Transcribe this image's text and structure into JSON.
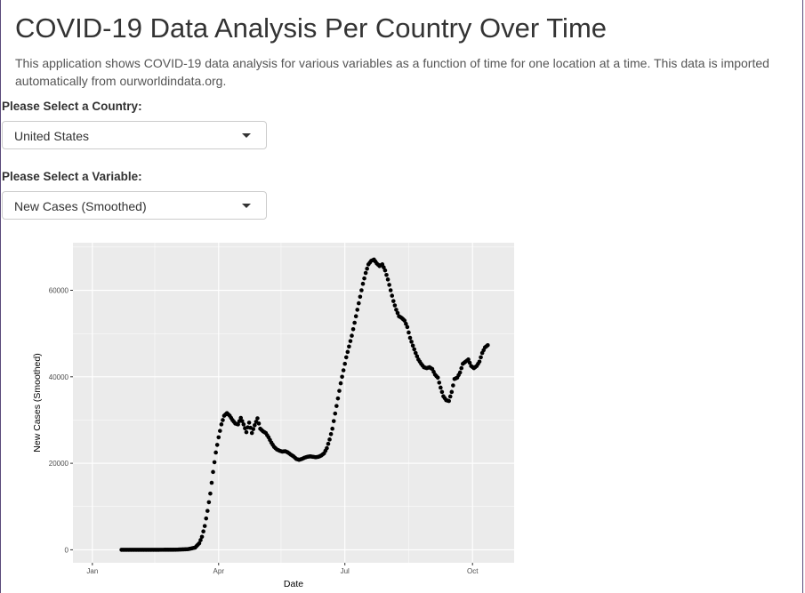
{
  "header": {
    "title": "COVID-19 Data Analysis Per Country Over Time",
    "description": "This application shows COVID-19 data analysis for various variables as a function of time for one location at a time. This data is imported automatically from ourworldindata.org."
  },
  "controls": {
    "country_label": "Please Select a Country:",
    "country_value": "United States",
    "variable_label": "Please Select a Variable:",
    "variable_value": "New Cases (Smoothed)"
  },
  "colors": {
    "panel_background": "#ebebeb",
    "grid": "#ffffff",
    "points": "#000000"
  },
  "chart_data": {
    "type": "scatter",
    "title": "",
    "xlabel": "Date",
    "ylabel": "New Cases (Smoothed)",
    "x_ticks": [
      "Jan",
      "Apr",
      "Jul",
      "Oct"
    ],
    "x_tick_dates": [
      "2020-01-01",
      "2020-04-01",
      "2020-07-01",
      "2020-10-01"
    ],
    "y_ticks": [
      0,
      20000,
      40000,
      60000
    ],
    "y_tick_labels": [
      "0",
      "20000",
      "40000",
      "60000"
    ],
    "xlim": [
      "2019-12-18",
      "2020-10-31"
    ],
    "ylim": [
      -3000,
      71000
    ],
    "grid": true,
    "legend": "none",
    "series": [
      {
        "points": [
          [
            "2020-01-22",
            0
          ],
          [
            "2020-02-15",
            0
          ],
          [
            "2020-03-01",
            20
          ],
          [
            "2020-03-10",
            150
          ],
          [
            "2020-03-15",
            500
          ],
          [
            "2020-03-18",
            1500
          ],
          [
            "2020-03-20",
            3000
          ],
          [
            "2020-03-22",
            5500
          ],
          [
            "2020-03-24",
            9000
          ],
          [
            "2020-03-26",
            13000
          ],
          [
            "2020-03-28",
            18000
          ],
          [
            "2020-03-30",
            22500
          ],
          [
            "2020-04-01",
            26000
          ],
          [
            "2020-04-03",
            29000
          ],
          [
            "2020-04-05",
            31000
          ],
          [
            "2020-04-07",
            31600
          ],
          [
            "2020-04-09",
            31000
          ],
          [
            "2020-04-11",
            30000
          ],
          [
            "2020-04-13",
            29200
          ],
          [
            "2020-04-15",
            29000
          ],
          [
            "2020-04-17",
            30500
          ],
          [
            "2020-04-19",
            29000
          ],
          [
            "2020-04-21",
            27200
          ],
          [
            "2020-04-23",
            29400
          ],
          [
            "2020-04-25",
            27000
          ],
          [
            "2020-04-27",
            28800
          ],
          [
            "2020-04-29",
            30400
          ],
          [
            "2020-05-01",
            28000
          ],
          [
            "2020-05-03",
            27400
          ],
          [
            "2020-05-05",
            27000
          ],
          [
            "2020-05-07",
            26000
          ],
          [
            "2020-05-09",
            24800
          ],
          [
            "2020-05-11",
            23800
          ],
          [
            "2020-05-13",
            23200
          ],
          [
            "2020-05-15",
            22900
          ],
          [
            "2020-05-17",
            22700
          ],
          [
            "2020-05-19",
            22800
          ],
          [
            "2020-05-21",
            22500
          ],
          [
            "2020-05-23",
            22000
          ],
          [
            "2020-05-25",
            21600
          ],
          [
            "2020-05-27",
            21000
          ],
          [
            "2020-05-29",
            20800
          ],
          [
            "2020-05-31",
            21000
          ],
          [
            "2020-06-02",
            21300
          ],
          [
            "2020-06-04",
            21500
          ],
          [
            "2020-06-06",
            21600
          ],
          [
            "2020-06-08",
            21500
          ],
          [
            "2020-06-10",
            21400
          ],
          [
            "2020-06-12",
            21500
          ],
          [
            "2020-06-14",
            21800
          ],
          [
            "2020-06-16",
            22300
          ],
          [
            "2020-06-18",
            23500
          ],
          [
            "2020-06-20",
            25500
          ],
          [
            "2020-06-22",
            28000
          ],
          [
            "2020-06-24",
            31500
          ],
          [
            "2020-06-26",
            35000
          ],
          [
            "2020-06-28",
            38500
          ],
          [
            "2020-06-30",
            41500
          ],
          [
            "2020-07-02",
            44500
          ],
          [
            "2020-07-04",
            47000
          ],
          [
            "2020-07-06",
            49500
          ],
          [
            "2020-07-08",
            52500
          ],
          [
            "2020-07-10",
            55500
          ],
          [
            "2020-07-12",
            58500
          ],
          [
            "2020-07-14",
            61500
          ],
          [
            "2020-07-16",
            64000
          ],
          [
            "2020-07-18",
            66000
          ],
          [
            "2020-07-20",
            66800
          ],
          [
            "2020-07-22",
            67100
          ],
          [
            "2020-07-24",
            66200
          ],
          [
            "2020-07-26",
            65600
          ],
          [
            "2020-07-28",
            66000
          ],
          [
            "2020-07-30",
            64600
          ],
          [
            "2020-08-01",
            62500
          ],
          [
            "2020-08-03",
            60000
          ],
          [
            "2020-08-05",
            57500
          ],
          [
            "2020-08-07",
            55500
          ],
          [
            "2020-08-09",
            54000
          ],
          [
            "2020-08-11",
            53600
          ],
          [
            "2020-08-13",
            53000
          ],
          [
            "2020-08-15",
            51500
          ],
          [
            "2020-08-17",
            49000
          ],
          [
            "2020-08-19",
            47200
          ],
          [
            "2020-08-21",
            45500
          ],
          [
            "2020-08-23",
            44000
          ],
          [
            "2020-08-25",
            43000
          ],
          [
            "2020-08-27",
            42200
          ],
          [
            "2020-08-29",
            42000
          ],
          [
            "2020-08-31",
            42200
          ],
          [
            "2020-09-02",
            41800
          ],
          [
            "2020-09-04",
            40500
          ],
          [
            "2020-09-06",
            39800
          ],
          [
            "2020-09-08",
            37500
          ],
          [
            "2020-09-10",
            35500
          ],
          [
            "2020-09-12",
            34600
          ],
          [
            "2020-09-14",
            34400
          ],
          [
            "2020-09-16",
            36500
          ],
          [
            "2020-09-18",
            39500
          ],
          [
            "2020-09-20",
            39800
          ],
          [
            "2020-09-22",
            41000
          ],
          [
            "2020-09-24",
            43000
          ],
          [
            "2020-09-26",
            43500
          ],
          [
            "2020-09-28",
            44000
          ],
          [
            "2020-09-30",
            42500
          ],
          [
            "2020-10-02",
            42000
          ],
          [
            "2020-10-04",
            42500
          ],
          [
            "2020-10-06",
            43500
          ],
          [
            "2020-10-08",
            45500
          ],
          [
            "2020-10-10",
            46800
          ],
          [
            "2020-10-12",
            47300
          ]
        ]
      }
    ]
  }
}
